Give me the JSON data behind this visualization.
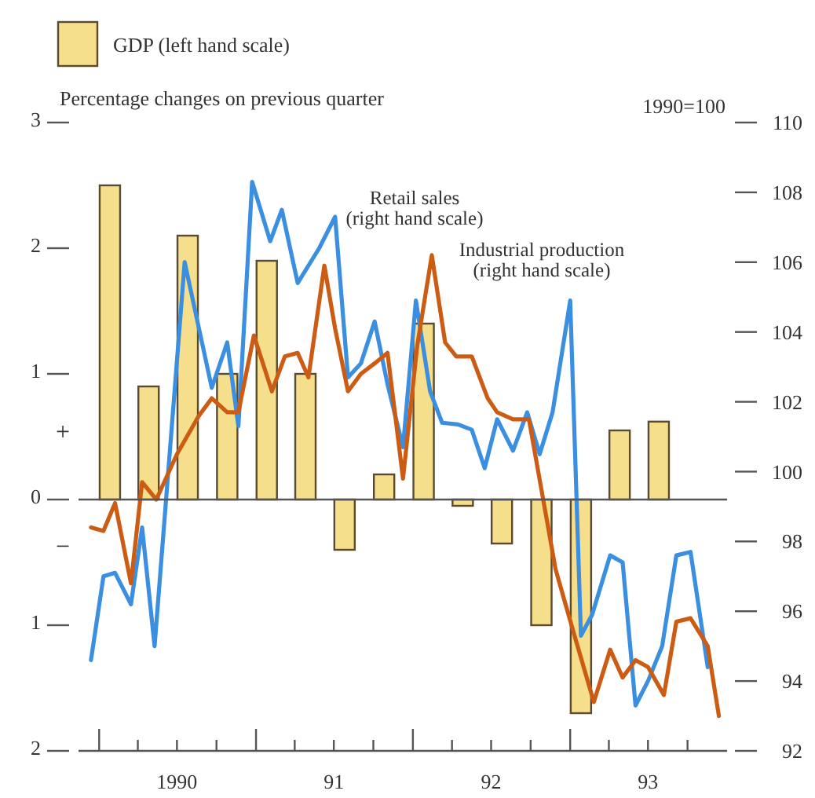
{
  "chart_data": {
    "type": "bar",
    "ylabel": "Percentage changes on previous quarter",
    "y2label": "1990=100",
    "annotations": [
      "+",
      "−"
    ],
    "legend": "top left",
    "xlim": [
      "1989-11-14",
      "1994-01-01"
    ],
    "xticks": [
      {
        "value": "1990-01-01",
        "label": null
      },
      {
        "value": "1990-04-01",
        "label": null
      },
      {
        "value": "1990-07-01",
        "label": "1990"
      },
      {
        "value": "1990-10-01",
        "label": null
      },
      {
        "value": "1991-01-01",
        "label": null
      },
      {
        "value": "1991-04-01",
        "label": null
      },
      {
        "value": "1991-07-01",
        "label": "91"
      },
      {
        "value": "1991-10-01",
        "label": null
      },
      {
        "value": "1992-01-01",
        "label": null
      },
      {
        "value": "1992-04-01",
        "label": null
      },
      {
        "value": "1992-07-01",
        "label": "92"
      },
      {
        "value": "1992-10-01",
        "label": null
      },
      {
        "value": "1993-01-01",
        "label": null
      },
      {
        "value": "1993-04-01",
        "label": null
      },
      {
        "value": "1993-07-01",
        "label": "93"
      },
      {
        "value": "1993-10-01",
        "label": null
      }
    ],
    "ylim": [
      -2,
      3
    ],
    "yticks": [
      3,
      2,
      1,
      0,
      {
        "value": -1,
        "label": "1"
      },
      {
        "value": -2,
        "label": "2"
      }
    ],
    "y2lim": [
      92,
      110
    ],
    "y2ticks": [
      92,
      94,
      96,
      98,
      100,
      102,
      104,
      106,
      108,
      110
    ],
    "series": [
      {
        "name": "GDP (left hand scale)",
        "color": "#f6df8c",
        "x": [
          "1990-01-26",
          "1990-04-26",
          "1990-07-26",
          "1990-10-26",
          "1991-01-26",
          "1991-04-26",
          "1991-07-26",
          "1991-10-26",
          "1992-01-26",
          "1992-04-26",
          "1992-07-26",
          "1992-10-26",
          "1993-01-26",
          "1993-04-26",
          "1993-07-26"
        ],
        "values": [
          2.5,
          0.9,
          2.1,
          1.0,
          1.9,
          1.0,
          -0.4,
          0.2,
          1.4,
          -0.05,
          -0.35,
          -1.0,
          -1.7,
          0.55,
          0.62
        ]
      },
      {
        "type": "line",
        "axis": "y2",
        "name": "Retail sales (right hand scale)",
        "color": "#3a8fe0",
        "x": [
          "1989-12-13",
          "1990-01-11",
          "1990-02-07",
          "1990-03-16",
          "1990-04-11",
          "1990-05-10",
          "1990-07-19",
          "1990-09-20",
          "1990-10-26",
          "1990-11-21",
          "1990-12-23",
          "1991-02-03",
          "1991-03-02",
          "1991-04-08",
          "1991-05-28",
          "1991-07-04",
          "1991-08-03",
          "1991-09-02",
          "1991-10-04",
          "1991-11-03",
          "1991-12-09",
          "1992-01-08",
          "1992-02-10",
          "1992-03-09",
          "1992-04-15",
          "1992-05-17",
          "1992-06-16",
          "1992-07-15",
          "1992-08-21",
          "1992-09-23",
          "1992-10-22",
          "1992-11-21",
          "1993-01-01",
          "1993-01-26",
          "1993-02-21",
          "1993-04-04",
          "1993-05-03",
          "1993-06-02",
          "1993-07-01",
          "1993-08-03",
          "1993-09-05",
          "1993-10-08",
          "1993-11-17"
        ],
        "values": [
          94.6,
          97.0,
          97.1,
          96.2,
          98.4,
          95.0,
          106.0,
          102.4,
          103.7,
          101.3,
          108.3,
          106.6,
          107.5,
          105.4,
          106.4,
          107.3,
          102.7,
          103.1,
          104.3,
          102.5,
          100.7,
          104.9,
          102.3,
          101.4,
          101.35,
          101.2,
          100.1,
          101.5,
          100.6,
          101.7,
          100.5,
          101.7,
          104.9,
          95.3,
          95.9,
          97.6,
          97.4,
          93.3,
          94.0,
          95.0,
          97.6,
          97.7,
          94.4
        ]
      },
      {
        "type": "line",
        "axis": "y2",
        "name": "Industrial production (right hand scale)",
        "color": "#cc5c14",
        "x": [
          "1989-12-13",
          "1990-01-11",
          "1990-02-07",
          "1990-03-16",
          "1990-04-11",
          "1990-05-14",
          "1990-07-01",
          "1990-08-21",
          "1990-09-20",
          "1990-10-26",
          "1990-11-21",
          "1990-12-27",
          "1991-02-07",
          "1991-03-09",
          "1991-04-08",
          "1991-05-03",
          "1991-06-09",
          "1991-07-04",
          "1991-08-03",
          "1991-09-02",
          "1991-10-04",
          "1991-11-03",
          "1991-12-09",
          "1992-01-11",
          "1992-02-14",
          "1992-03-16",
          "1992-04-11",
          "1992-05-17",
          "1992-06-23",
          "1992-07-15",
          "1992-08-21",
          "1992-09-27",
          "1992-11-28",
          "1993-01-11",
          "1993-02-25",
          "1993-04-04",
          "1993-05-03",
          "1993-06-02",
          "1993-07-01",
          "1993-08-07",
          "1993-09-05",
          "1993-10-08",
          "1993-11-17",
          "1993-12-13"
        ],
        "values": [
          98.4,
          98.3,
          99.1,
          96.8,
          99.7,
          99.2,
          100.5,
          101.6,
          102.1,
          101.7,
          101.7,
          103.9,
          102.3,
          103.3,
          103.4,
          102.7,
          105.9,
          104.1,
          102.3,
          102.8,
          103.1,
          103.4,
          99.8,
          103.6,
          106.2,
          103.7,
          103.3,
          103.3,
          102.1,
          101.7,
          101.5,
          101.5,
          97.2,
          95.3,
          93.4,
          94.9,
          94.1,
          94.6,
          94.4,
          93.6,
          95.7,
          95.8,
          95.0,
          93.0
        ]
      }
    ]
  }
}
